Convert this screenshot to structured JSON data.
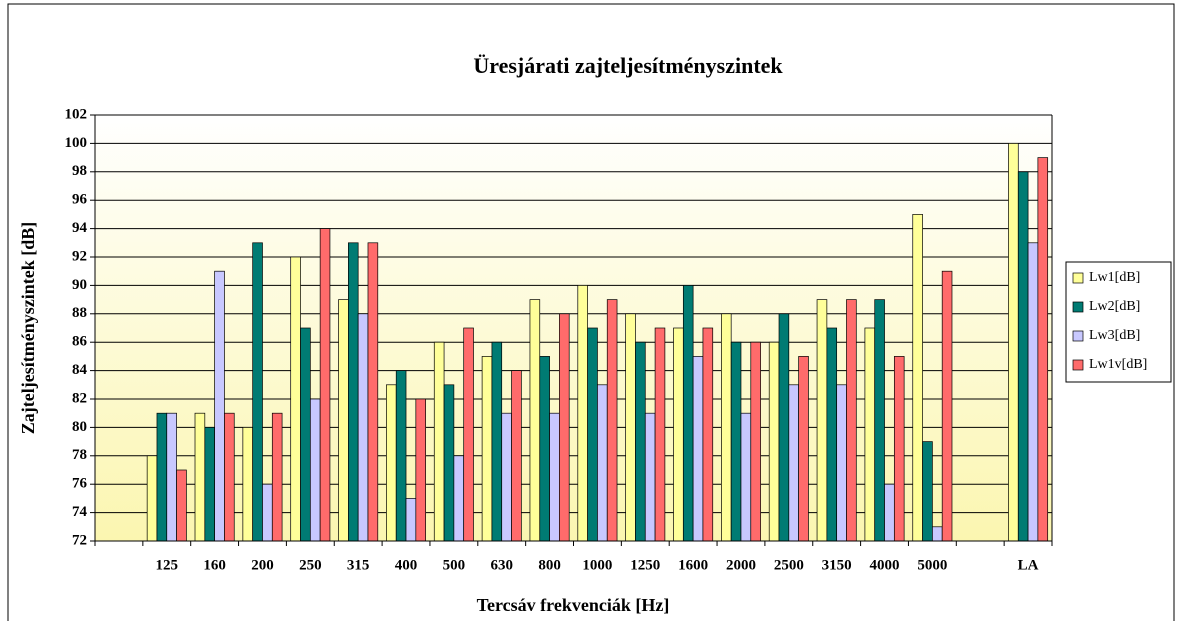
{
  "chart_data": {
    "type": "bar",
    "title": "Üresjárati zajteljesítményszintek",
    "x_label": "Tercsáv frekvenciák [Hz]",
    "y_label": "Zajteljesítményszintek [dB]",
    "categories": [
      null,
      "125",
      "160",
      "200",
      "250",
      "315",
      "400",
      "500",
      "630",
      "800",
      "1000",
      "1250",
      "1600",
      "2000",
      "2500",
      "3150",
      "4000",
      "5000",
      null,
      "LA"
    ],
    "series": [
      {
        "name": "Lw1[dB]",
        "color": "#ffff99",
        "values": [
          null,
          78,
          81,
          80,
          92,
          89,
          83,
          86,
          85,
          89,
          90,
          88,
          87,
          88,
          86,
          89,
          87,
          95,
          null,
          100
        ]
      },
      {
        "name": "Lw2[dB]",
        "color": "#007b73",
        "values": [
          null,
          81,
          80,
          93,
          87,
          93,
          84,
          83,
          86,
          85,
          87,
          86,
          90,
          86,
          88,
          87,
          89,
          79,
          null,
          98
        ]
      },
      {
        "name": "Lw3[dB]",
        "color": "#c8c8ff",
        "values": [
          null,
          81,
          91,
          76,
          82,
          88,
          75,
          78,
          81,
          81,
          83,
          81,
          85,
          81,
          83,
          83,
          76,
          73,
          null,
          93
        ]
      },
      {
        "name": "Lw1v[dB]",
        "color": "#ff6b6b",
        "values": [
          null,
          77,
          81,
          81,
          94,
          93,
          82,
          87,
          84,
          88,
          89,
          87,
          87,
          86,
          85,
          89,
          85,
          91,
          null,
          99
        ]
      }
    ],
    "ylim": [
      72,
      102
    ],
    "yticks": [
      72,
      74,
      76,
      78,
      80,
      82,
      84,
      86,
      88,
      90,
      92,
      94,
      96,
      98,
      100,
      102
    ],
    "grid": true
  }
}
